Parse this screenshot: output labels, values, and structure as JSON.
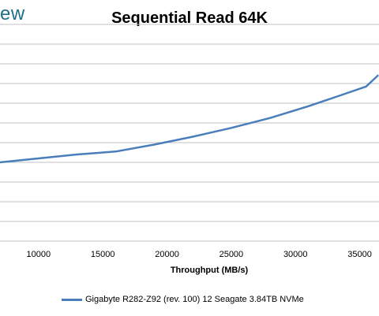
{
  "brand": {
    "logo_text": "ew"
  },
  "chart_data": {
    "type": "line",
    "title": "Sequential Read 64K",
    "xlabel": "Throughput (MB/s)",
    "ylabel": "",
    "xlim": [
      7000,
      36500
    ],
    "ylim": [
      0,
      11
    ],
    "x_ticks": [
      10000,
      15000,
      20000,
      25000,
      30000,
      35000
    ],
    "grid": true,
    "legend_position": "bottom",
    "series": [
      {
        "name": "Gigabyte R282-Z92 (rev. 100) 12 Seagate 3.84TB NVMe",
        "color": "#4a7ebb",
        "x": [
          7000,
          10000,
          13000,
          16000,
          19000,
          22000,
          25000,
          28000,
          31000,
          33500,
          35500,
          36400
        ],
        "y": [
          4.0,
          4.2,
          4.4,
          4.55,
          4.9,
          5.3,
          5.75,
          6.25,
          6.85,
          7.4,
          7.85,
          8.4
        ]
      }
    ],
    "colors": {
      "gridline": "#c0c0c0",
      "series": "#4a7ebb"
    }
  }
}
